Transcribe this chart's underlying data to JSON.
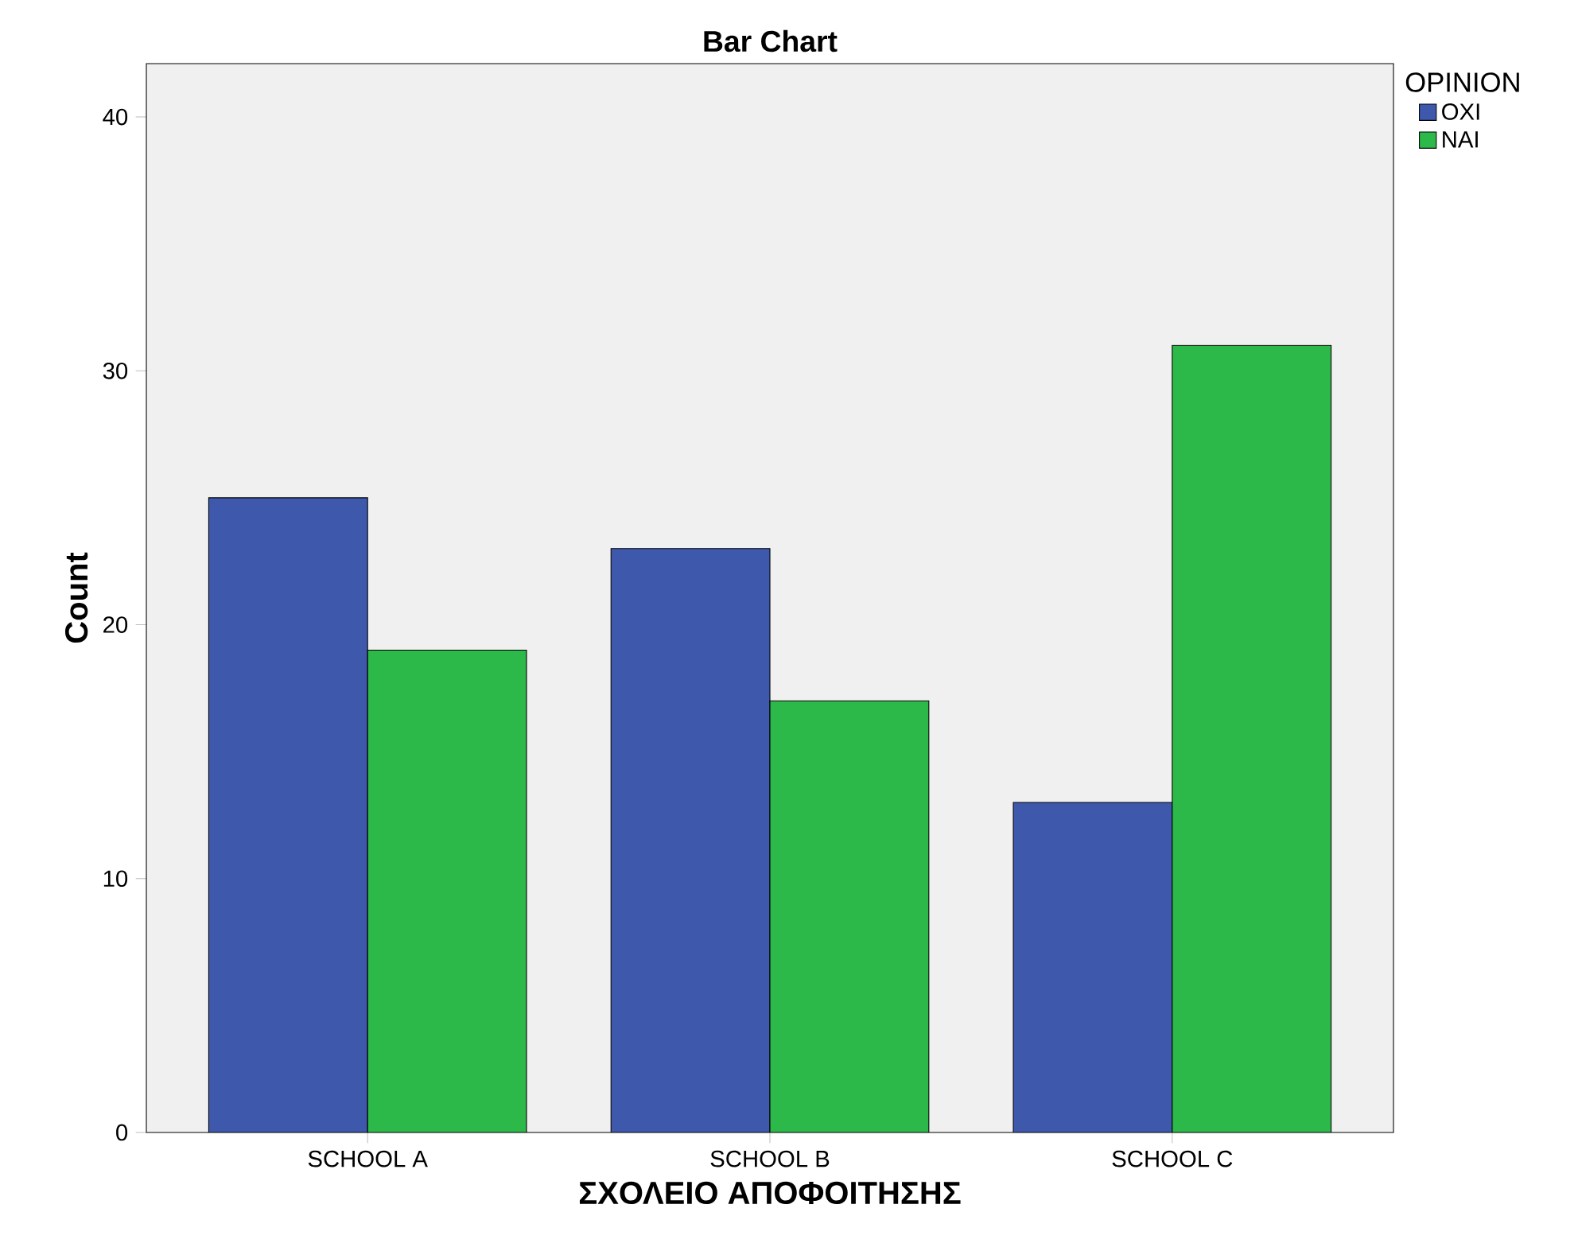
{
  "chart_data": {
    "type": "bar",
    "title": "Bar Chart",
    "xlabel": "ΣΧΟΛΕΙΟ ΑΠΟΦΟΙΤΗΣΗΣ",
    "ylabel": "Count",
    "legend_title": "OPINION",
    "categories": [
      "SCHOOL A",
      "SCHOOL B",
      "SCHOOL C"
    ],
    "series": [
      {
        "name": "ΟΧΙ",
        "color": "#3e58ac",
        "values": [
          25,
          23,
          13
        ]
      },
      {
        "name": "ΝΑΙ",
        "color": "#2db84a",
        "values": [
          19,
          17,
          31
        ]
      }
    ],
    "ylim": [
      0,
      42.1
    ],
    "yticks": [
      0,
      10,
      20,
      30,
      40
    ],
    "legend": "top right",
    "grid": false
  }
}
